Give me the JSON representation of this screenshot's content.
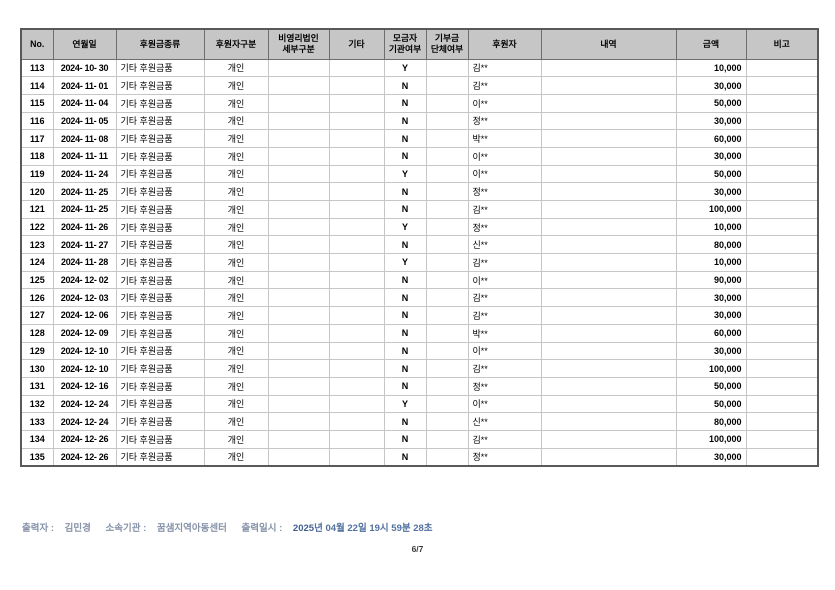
{
  "table": {
    "column_keys": [
      "no",
      "date",
      "donation-type",
      "donor-class",
      "nonprofit-detail",
      "etc",
      "fundraiser-org-yn",
      "donation-group-yn",
      "donor",
      "description",
      "amount",
      "note"
    ],
    "columns": [
      "No.",
      "연월일",
      "후원금종류",
      "후원자구분",
      "비영리법인\n세부구분",
      "기타",
      "모금자\n기관여부",
      "기부금\n단체여부",
      "후원자",
      "내역",
      "금액",
      "비고"
    ],
    "rows": [
      [
        "113",
        "2024- 10- 30",
        "기타 후원금품",
        "개인",
        "",
        "",
        "Y",
        "",
        "김**",
        "",
        "10,000",
        ""
      ],
      [
        "114",
        "2024- 11- 01",
        "기타 후원금품",
        "개인",
        "",
        "",
        "N",
        "",
        "김**",
        "",
        "30,000",
        ""
      ],
      [
        "115",
        "2024- 11- 04",
        "기타 후원금품",
        "개인",
        "",
        "",
        "N",
        "",
        "이**",
        "",
        "50,000",
        ""
      ],
      [
        "116",
        "2024- 11- 05",
        "기타 후원금품",
        "개인",
        "",
        "",
        "N",
        "",
        "정**",
        "",
        "30,000",
        ""
      ],
      [
        "117",
        "2024- 11- 08",
        "기타 후원금품",
        "개인",
        "",
        "",
        "N",
        "",
        "박**",
        "",
        "60,000",
        ""
      ],
      [
        "118",
        "2024- 11- 11",
        "기타 후원금품",
        "개인",
        "",
        "",
        "N",
        "",
        "이**",
        "",
        "30,000",
        ""
      ],
      [
        "119",
        "2024- 11- 24",
        "기타 후원금품",
        "개인",
        "",
        "",
        "Y",
        "",
        "이**",
        "",
        "50,000",
        ""
      ],
      [
        "120",
        "2024- 11- 25",
        "기타 후원금품",
        "개인",
        "",
        "",
        "N",
        "",
        "정**",
        "",
        "30,000",
        ""
      ],
      [
        "121",
        "2024- 11- 25",
        "기타 후원금품",
        "개인",
        "",
        "",
        "N",
        "",
        "김**",
        "",
        "100,000",
        ""
      ],
      [
        "122",
        "2024- 11- 26",
        "기타 후원금품",
        "개인",
        "",
        "",
        "Y",
        "",
        "정**",
        "",
        "10,000",
        ""
      ],
      [
        "123",
        "2024- 11- 27",
        "기타 후원금품",
        "개인",
        "",
        "",
        "N",
        "",
        "신**",
        "",
        "80,000",
        ""
      ],
      [
        "124",
        "2024- 11- 28",
        "기타 후원금품",
        "개인",
        "",
        "",
        "Y",
        "",
        "김**",
        "",
        "10,000",
        ""
      ],
      [
        "125",
        "2024- 12- 02",
        "기타 후원금품",
        "개인",
        "",
        "",
        "N",
        "",
        "이**",
        "",
        "90,000",
        ""
      ],
      [
        "126",
        "2024- 12- 03",
        "기타 후원금품",
        "개인",
        "",
        "",
        "N",
        "",
        "김**",
        "",
        "30,000",
        ""
      ],
      [
        "127",
        "2024- 12- 06",
        "기타 후원금품",
        "개인",
        "",
        "",
        "N",
        "",
        "김**",
        "",
        "30,000",
        ""
      ],
      [
        "128",
        "2024- 12- 09",
        "기타 후원금품",
        "개인",
        "",
        "",
        "N",
        "",
        "박**",
        "",
        "60,000",
        ""
      ],
      [
        "129",
        "2024- 12- 10",
        "기타 후원금품",
        "개인",
        "",
        "",
        "N",
        "",
        "이**",
        "",
        "30,000",
        ""
      ],
      [
        "130",
        "2024- 12- 10",
        "기타 후원금품",
        "개인",
        "",
        "",
        "N",
        "",
        "김**",
        "",
        "100,000",
        ""
      ],
      [
        "131",
        "2024- 12- 16",
        "기타 후원금품",
        "개인",
        "",
        "",
        "N",
        "",
        "정**",
        "",
        "50,000",
        ""
      ],
      [
        "132",
        "2024- 12- 24",
        "기타 후원금품",
        "개인",
        "",
        "",
        "Y",
        "",
        "이**",
        "",
        "50,000",
        ""
      ],
      [
        "133",
        "2024- 12- 24",
        "기타 후원금품",
        "개인",
        "",
        "",
        "N",
        "",
        "신**",
        "",
        "80,000",
        ""
      ],
      [
        "134",
        "2024- 12- 26",
        "기타 후원금품",
        "개인",
        "",
        "",
        "N",
        "",
        "김**",
        "",
        "100,000",
        ""
      ],
      [
        "135",
        "2024- 12- 26",
        "기타 후원금품",
        "개인",
        "",
        "",
        "N",
        "",
        "정**",
        "",
        "30,000",
        ""
      ]
    ],
    "cell_align": [
      "c",
      "c",
      "l",
      "c",
      "c",
      "c",
      "c",
      "c",
      "l",
      "l",
      "r",
      "c"
    ],
    "cell_weight": [
      "b",
      "b",
      "m",
      "m",
      "m",
      "m",
      "b",
      "b",
      "m",
      "m",
      "b",
      "m"
    ]
  },
  "footer": {
    "printed_by_label": "출력자 :",
    "printed_by": "김민경",
    "org_label": "소속기관 :",
    "org": "꿈샘지역아동센터",
    "printed_at_label": "출력일시 :",
    "printed_at_year": "2025",
    "printed_at_rest": "년 04월 22일 19시 59분 28초",
    "page": "6/7"
  },
  "colors": {
    "header_bg": "#c6c6c6",
    "outer_border": "#595959",
    "header_border": "#6e6e6e",
    "body_border": "#c6c6c6",
    "footer_label": "#8693a9",
    "footer_timestamp": "#51719f",
    "page_number": "#3a3a3a"
  }
}
